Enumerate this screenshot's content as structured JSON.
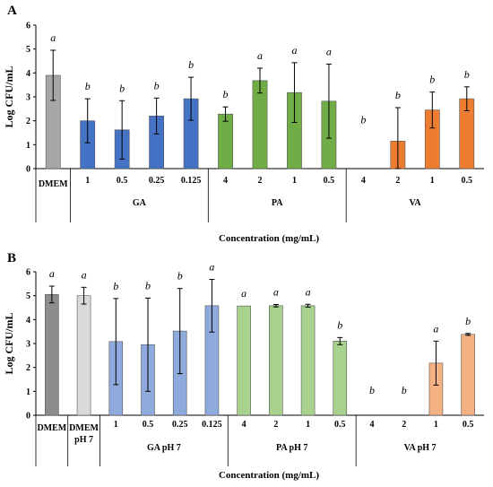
{
  "panels": [
    {
      "label": "A",
      "ylabel": "Log CFU/mL",
      "xlabel": "Concentration (mg/mL)",
      "ylim": [
        0,
        6
      ],
      "yticks": [
        0,
        1,
        2,
        3,
        4,
        5,
        6
      ],
      "groups": [
        {
          "name": "",
          "bars": [
            "DMEM"
          ]
        },
        {
          "name": "GA",
          "bars": [
            "1",
            "0.5",
            "0.25",
            "0.125"
          ]
        },
        {
          "name": "PA",
          "bars": [
            "4",
            "2",
            "1",
            "0.5"
          ]
        },
        {
          "name": "VA",
          "bars": [
            "4",
            "2",
            "1",
            "0.5"
          ]
        }
      ]
    },
    {
      "label": "B",
      "ylabel": "Log CFU/mL",
      "xlabel": "Concentration (mg/mL)",
      "ylim": [
        0,
        6
      ],
      "yticks": [
        0,
        1,
        2,
        3,
        4,
        5,
        6
      ],
      "groups": [
        {
          "name": "",
          "bars": [
            "DMEM",
            "DMEM pH 7"
          ]
        },
        {
          "name": "GA pH 7",
          "bars": [
            "1",
            "0.5",
            "0.25",
            "0.125"
          ]
        },
        {
          "name": "PA pH 7",
          "bars": [
            "4",
            "2",
            "1",
            "0.5"
          ]
        },
        {
          "name": "VA pH 7",
          "bars": [
            "4",
            "2",
            "1",
            "0.5"
          ]
        }
      ]
    }
  ],
  "chart_data": [
    {
      "type": "bar",
      "title": "A",
      "ylabel": "Log CFU/mL",
      "xlabel": "Concentration (mg/mL)",
      "ylim": [
        0,
        6
      ],
      "categories": [
        "DMEM",
        "GA 1",
        "GA 0.5",
        "GA 0.25",
        "GA 0.125",
        "PA 4",
        "PA 2",
        "PA 1",
        "PA 0.5",
        "VA 4",
        "VA 2",
        "VA 1",
        "VA 0.5"
      ],
      "values": [
        3.9,
        2.0,
        1.62,
        2.2,
        2.92,
        2.28,
        3.68,
        3.18,
        2.82,
        0,
        1.15,
        2.45,
        2.92
      ],
      "errors": [
        1.05,
        0.92,
        1.22,
        0.75,
        0.9,
        0.3,
        0.52,
        1.25,
        1.55,
        0,
        1.4,
        0.75,
        0.5
      ],
      "significance": [
        "a",
        "b",
        "b",
        "b",
        "b",
        "b",
        "a",
        "a",
        "a",
        "b",
        "b",
        "b",
        "b"
      ],
      "colors": [
        "#a6a6a6",
        "#4472c4",
        "#4472c4",
        "#4472c4",
        "#4472c4",
        "#70ad47",
        "#70ad47",
        "#70ad47",
        "#70ad47",
        "#ed7d31",
        "#ed7d31",
        "#ed7d31",
        "#ed7d31"
      ]
    },
    {
      "type": "bar",
      "title": "B",
      "ylabel": "Log CFU/mL",
      "xlabel": "Concentration (mg/mL)",
      "ylim": [
        0,
        6
      ],
      "categories": [
        "DMEM",
        "DMEM pH 7",
        "GA pH 7 1",
        "GA pH 7 0.5",
        "GA pH 7 0.25",
        "GA pH 7 0.125",
        "PA pH 7 4",
        "PA pH 7 2",
        "PA pH 7 1",
        "PA pH 7 0.5",
        "VA pH 7 4",
        "VA pH 7 2",
        "VA pH 7 1",
        "VA pH 7 0.5"
      ],
      "values": [
        5.05,
        5.0,
        3.08,
        2.95,
        3.52,
        4.58,
        4.57,
        4.58,
        4.58,
        3.1,
        0,
        0,
        2.18,
        3.38
      ],
      "errors": [
        0.35,
        0.35,
        1.8,
        1.95,
        1.78,
        1.1,
        0,
        0.05,
        0.06,
        0.15,
        0,
        0,
        0.92,
        0.04
      ],
      "significance": [
        "a",
        "a",
        "b",
        "b",
        "b",
        "a",
        "a",
        "a",
        "a",
        "b",
        "b",
        "b",
        "a",
        "b"
      ],
      "colors": [
        "#8c8c8c",
        "#d9d9d9",
        "#8faadc",
        "#8faadc",
        "#8faadc",
        "#8faadc",
        "#a9d18e",
        "#a9d18e",
        "#a9d18e",
        "#a9d18e",
        "#f4b183",
        "#f4b183",
        "#f4b183",
        "#f4b183"
      ]
    }
  ]
}
